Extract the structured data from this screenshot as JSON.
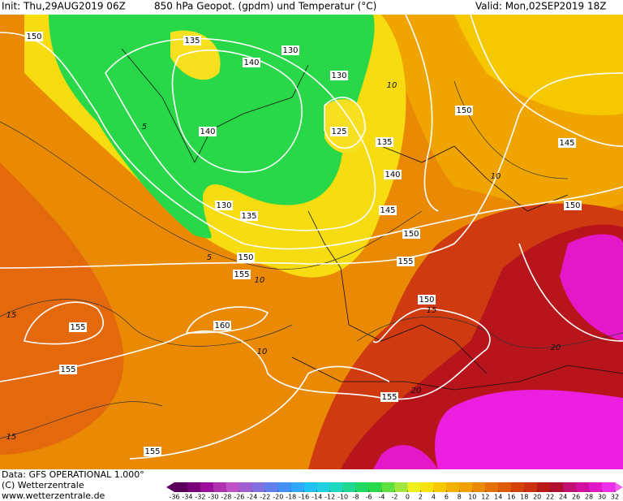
{
  "header": {
    "init": "Init: Thu,29AUG2019 06Z",
    "title": "850 hPa Geopot. (gpdm) und Temperatur (°C)",
    "valid": "Valid: Mon,02SEP2019 18Z"
  },
  "map": {
    "geopotential_labels": [
      "150",
      "135",
      "140",
      "130",
      "130",
      "140",
      "125",
      "135",
      "140",
      "130",
      "135",
      "145",
      "150",
      "150",
      "155",
      "155",
      "150",
      "155",
      "160",
      "155",
      "155",
      "155",
      "150",
      "145",
      "150"
    ],
    "isotherm_labels": [
      "10",
      "5",
      "10",
      "5",
      "10",
      "15",
      "10",
      "15",
      "20",
      "20",
      "15"
    ]
  },
  "footer": {
    "data": "Data: GFS OPERATIONAL 1.000°",
    "copyright": "(C) Wetterzentrale",
    "website": "www.wetterzentrale.de"
  },
  "colorbar": {
    "ticks": [
      -36,
      -34,
      -32,
      -30,
      -28,
      -26,
      -24,
      -22,
      -20,
      -18,
      -16,
      -14,
      -12,
      -10,
      -8,
      -6,
      -4,
      -2,
      0,
      2,
      4,
      6,
      8,
      10,
      12,
      14,
      16,
      18,
      20,
      22,
      24,
      26,
      28,
      30,
      32
    ]
  }
}
